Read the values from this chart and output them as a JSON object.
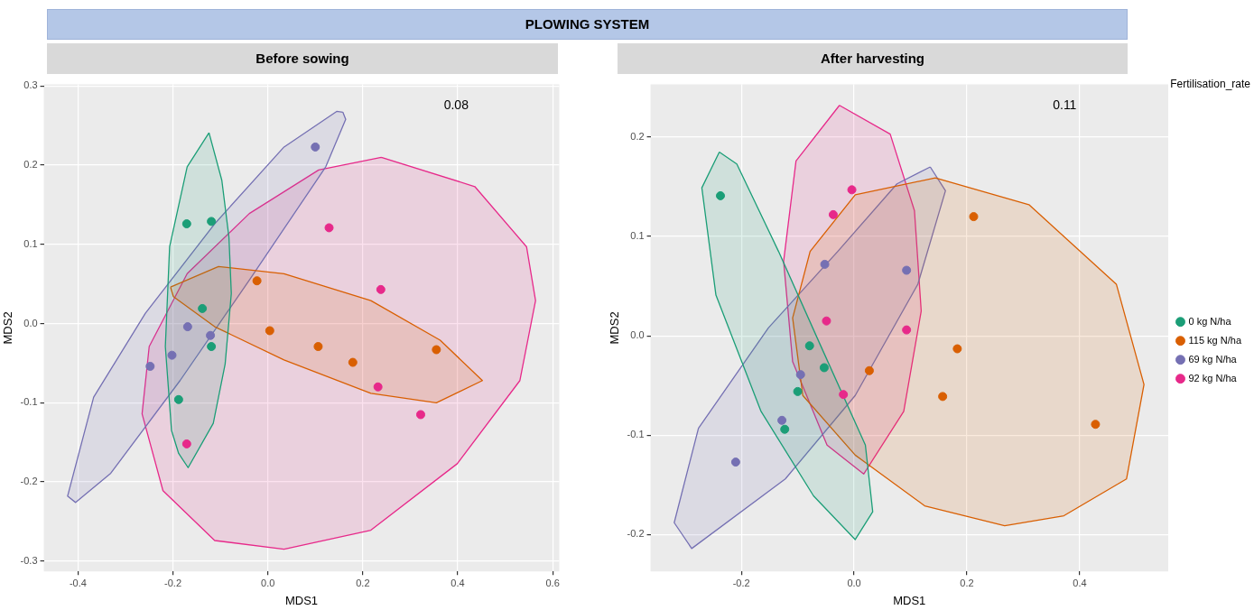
{
  "chart_data": [
    {
      "type": "scatter",
      "title": "PLOWING SYSTEM",
      "subtitle": "Before sowing",
      "xlabel": "MDS1",
      "ylabel": "MDS2",
      "xlim": [
        -0.472,
        0.614
      ],
      "ylim": [
        -0.313,
        0.302
      ],
      "xticks": [
        -0.4,
        -0.2,
        {
          "value": 0,
          "label": "0.0"
        },
        0.2,
        0.4,
        0.6
      ],
      "yticks": [
        -0.3,
        -0.2,
        -0.1,
        {
          "value": 0,
          "label": "0.0"
        },
        0.1,
        0.2,
        0.3
      ],
      "grid": true,
      "legend": false,
      "marker": "circle",
      "annotations": [
        "0.08"
      ],
      "series": [
        {
          "type": "area",
          "marker": "none",
          "color": "#1b9e77",
          "x": [
            -0.124,
            -0.097,
            -0.082,
            -0.077,
            -0.09,
            -0.115,
            -0.168,
            -0.188,
            -0.203,
            -0.216,
            -0.207,
            -0.17,
            -0.124
          ],
          "values": [
            0.241,
            0.181,
            0.109,
            0.038,
            -0.051,
            -0.126,
            -0.182,
            -0.164,
            -0.135,
            -0.029,
            0.097,
            0.198,
            0.241
          ]
        },
        {
          "type": "area",
          "marker": "none",
          "color": "#d95f02",
          "x": [
            -0.205,
            -0.104,
            0.034,
            0.217,
            0.363,
            0.452,
            0.355,
            0.217,
            0.034,
            -0.112,
            -0.199,
            -0.205
          ],
          "values": [
            0.046,
            0.072,
            0.063,
            0.029,
            -0.021,
            -0.072,
            -0.1,
            -0.088,
            -0.046,
            -0.004,
            0.034,
            0.046
          ]
        },
        {
          "type": "area",
          "marker": "none",
          "color": "#7570b3",
          "x": [
            0.158,
            0.164,
            0.122,
            -0.039,
            -0.185,
            -0.331,
            -0.405,
            -0.422,
            -0.367,
            -0.258,
            -0.112,
            0.034,
            0.145,
            0.158
          ],
          "values": [
            0.267,
            0.258,
            0.198,
            0.055,
            -0.072,
            -0.189,
            -0.226,
            -0.218,
            -0.093,
            0.013,
            0.126,
            0.223,
            0.268,
            0.267
          ]
        },
        {
          "type": "area",
          "marker": "none",
          "color": "#e7298a",
          "x": [
            0.239,
            0.436,
            0.545,
            0.564,
            0.531,
            0.399,
            0.217,
            0.034,
            -0.112,
            -0.221,
            -0.265,
            -0.25,
            -0.17,
            -0.039,
            0.107,
            0.239
          ],
          "values": [
            0.21,
            0.173,
            0.097,
            0.029,
            -0.072,
            -0.177,
            -0.261,
            -0.285,
            -0.274,
            -0.211,
            -0.114,
            -0.029,
            0.063,
            0.139,
            0.194,
            0.21
          ]
        },
        {
          "color": "#1b9e77",
          "x": [
            -0.171,
            -0.119,
            -0.138,
            -0.119,
            -0.188
          ],
          "values": [
            0.126,
            0.129,
            0.019,
            -0.029,
            -0.096
          ]
        },
        {
          "color": "#d95f02",
          "x": [
            -0.023,
            0.004,
            0.106,
            0.179,
            0.355
          ],
          "values": [
            0.054,
            -0.009,
            -0.029,
            -0.049,
            -0.033
          ]
        },
        {
          "color": "#7570b3",
          "x": [
            0.1,
            -0.169,
            -0.121,
            -0.202,
            -0.248
          ],
          "values": [
            0.223,
            -0.004,
            -0.015,
            -0.04,
            -0.054
          ]
        },
        {
          "color": "#e7298a",
          "x": [
            0.129,
            0.238,
            0.232,
            0.322,
            -0.171
          ],
          "values": [
            0.121,
            0.043,
            -0.08,
            -0.115,
            -0.152
          ]
        }
      ]
    },
    {
      "type": "scatter",
      "subtitle": "After harvesting",
      "xlabel": "MDS1",
      "ylabel": "MDS2",
      "xlim": [
        -0.361,
        0.557
      ],
      "ylim": [
        -0.237,
        0.253
      ],
      "xticks": [
        -0.2,
        {
          "value": 0,
          "label": "0.0"
        },
        0.2,
        0.4
      ],
      "yticks": [
        -0.2,
        -0.1,
        {
          "value": 0,
          "label": "0.0"
        },
        0.1,
        0.2
      ],
      "grid": true,
      "legend": "right",
      "legend_title": "Fertilisation_rate",
      "marker": "circle",
      "annotations": [
        "0.11"
      ],
      "series": [
        {
          "type": "area",
          "marker": "none",
          "color": "#1b9e77",
          "x": [
            -0.239,
            -0.27,
            -0.245,
            -0.165,
            -0.072,
            0.002,
            0.033,
            0.02,
            -0.06,
            -0.134,
            -0.208,
            -0.239
          ],
          "values": [
            0.185,
            0.149,
            0.041,
            -0.076,
            -0.161,
            -0.205,
            -0.177,
            -0.11,
            -0.009,
            0.085,
            0.173,
            0.185
          ]
        },
        {
          "type": "area",
          "marker": "none",
          "color": "#d95f02",
          "x": [
            0.144,
            0.31,
            0.465,
            0.514,
            0.483,
            0.372,
            0.267,
            0.125,
            0.002,
            -0.091,
            -0.109,
            -0.078,
            0.002,
            0.144
          ],
          "values": [
            0.159,
            0.132,
            0.052,
            -0.049,
            -0.144,
            -0.181,
            -0.191,
            -0.171,
            -0.12,
            -0.06,
            0.018,
            0.085,
            0.142,
            0.159
          ]
        },
        {
          "type": "area",
          "marker": "none",
          "color": "#7570b3",
          "x": [
            0.135,
            0.162,
            0.113,
            0.002,
            -0.122,
            -0.288,
            -0.319,
            -0.276,
            -0.152,
            -0.029,
            0.076,
            0.135
          ],
          "values": [
            0.17,
            0.146,
            0.052,
            -0.06,
            -0.144,
            -0.214,
            -0.188,
            -0.093,
            0.008,
            0.085,
            0.153,
            0.17
          ]
        },
        {
          "type": "area",
          "marker": "none",
          "color": "#e7298a",
          "x": [
            -0.026,
            0.064,
            0.107,
            0.119,
            0.088,
            0.017,
            -0.048,
            -0.109,
            -0.125,
            -0.103,
            -0.026
          ],
          "values": [
            0.232,
            0.203,
            0.126,
            0.025,
            -0.076,
            -0.139,
            -0.11,
            -0.026,
            0.075,
            0.176,
            0.232
          ]
        },
        {
          "name": "0 kg N/ha",
          "color": "#1b9e77",
          "x": [
            -0.237,
            -0.079,
            -0.053,
            -0.1,
            -0.123
          ],
          "values": [
            0.141,
            -0.01,
            -0.032,
            -0.056,
            -0.094
          ]
        },
        {
          "name": "115 kg N/ha",
          "color": "#d95f02",
          "x": [
            0.212,
            0.183,
            0.027,
            0.157,
            0.428
          ],
          "values": [
            0.12,
            -0.013,
            -0.035,
            -0.061,
            -0.089
          ]
        },
        {
          "name": "69 kg N/ha",
          "color": "#7570b3",
          "x": [
            -0.052,
            0.093,
            -0.095,
            -0.128,
            -0.21
          ],
          "values": [
            0.072,
            0.066,
            -0.039,
            -0.085,
            -0.127
          ]
        },
        {
          "name": "92 kg N/ha",
          "color": "#e7298a",
          "x": [
            -0.004,
            -0.037,
            -0.049,
            0.093,
            -0.019
          ],
          "values": [
            0.147,
            0.122,
            0.015,
            0.006,
            -0.059
          ]
        }
      ]
    }
  ]
}
